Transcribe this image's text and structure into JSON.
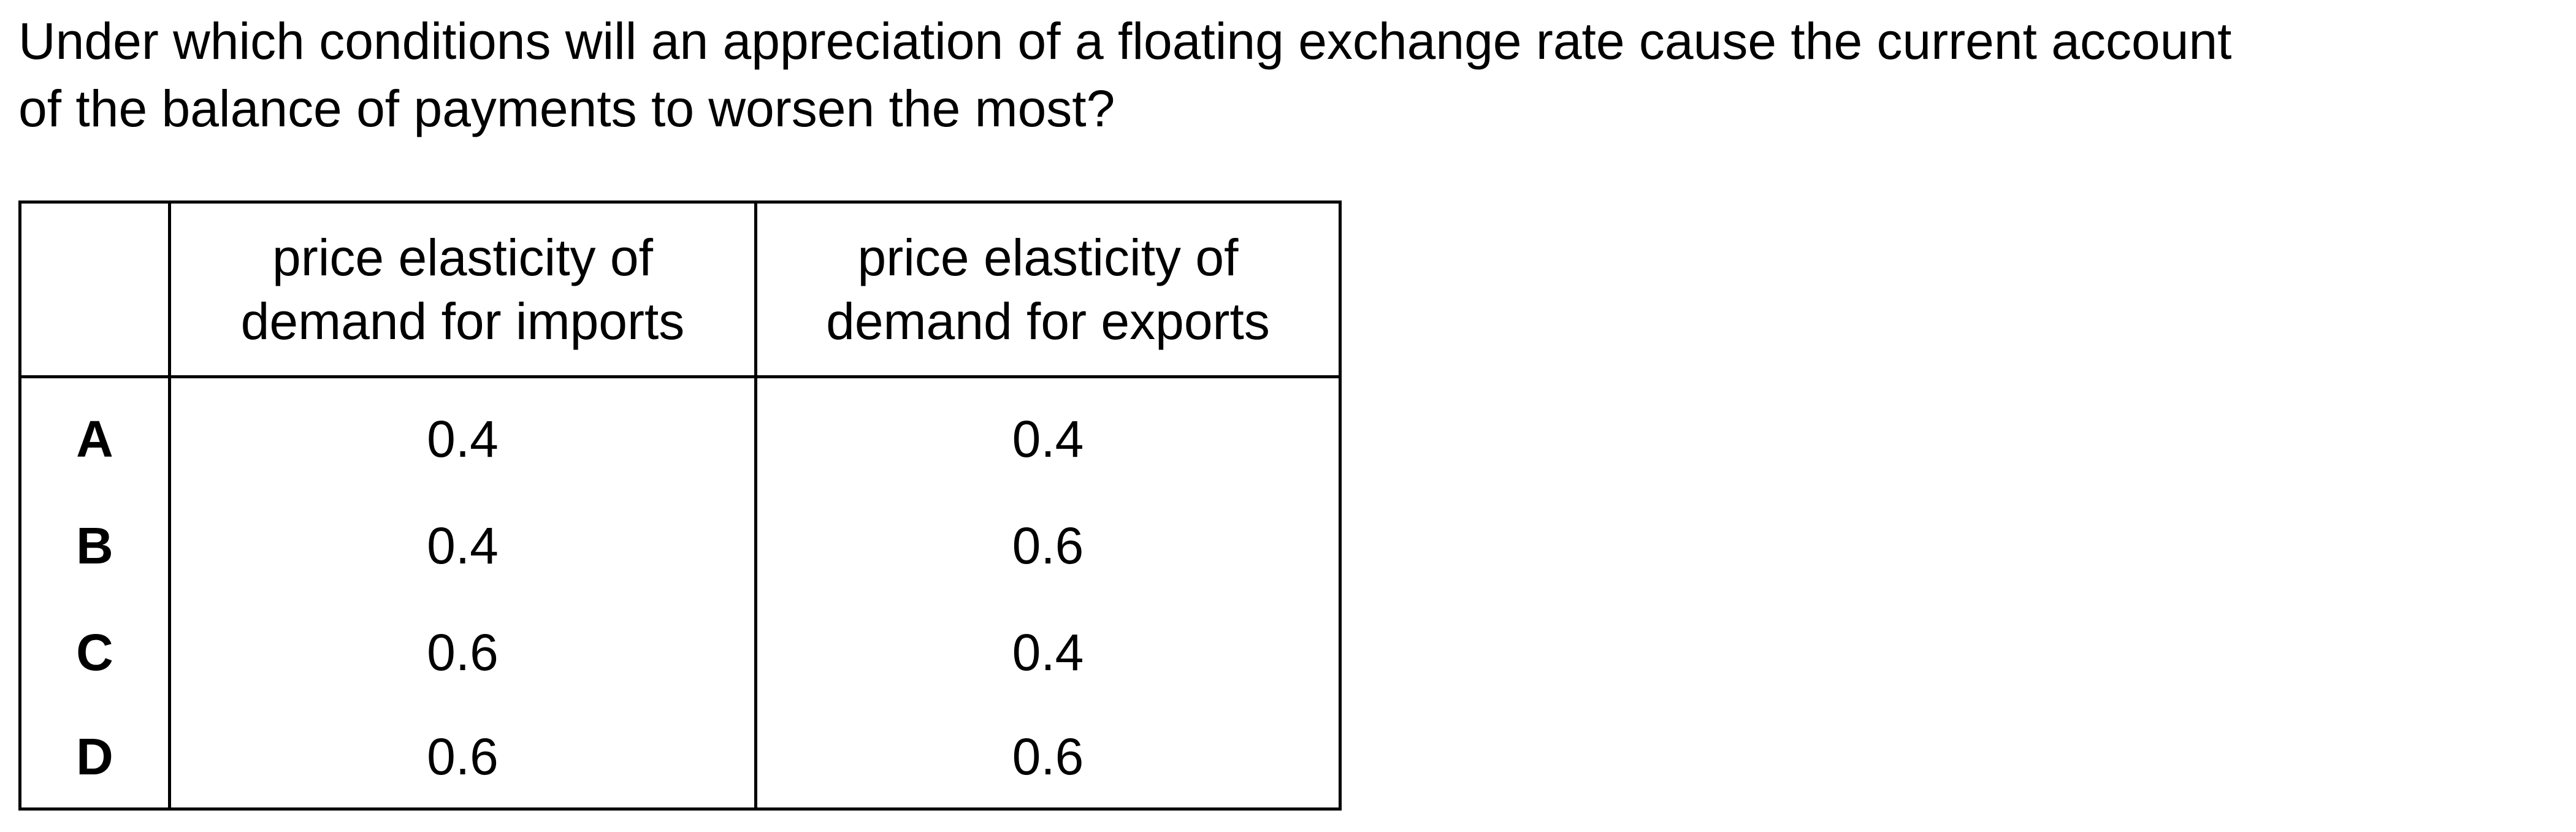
{
  "question": {
    "line1": "Under which conditions will an appreciation of a floating exchange rate cause the current account",
    "line2": "of the balance of payments to worsen the most?"
  },
  "table": {
    "headers": [
      "",
      [
        "price elasticity of",
        "demand for imports"
      ],
      [
        "price elasticity of",
        "demand for exports"
      ]
    ],
    "rows": [
      {
        "option": "A",
        "imports": "0.4",
        "exports": "0.4"
      },
      {
        "option": "B",
        "imports": "0.4",
        "exports": "0.6"
      },
      {
        "option": "C",
        "imports": "0.6",
        "exports": "0.4"
      },
      {
        "option": "D",
        "imports": "0.6",
        "exports": "0.6"
      }
    ]
  }
}
